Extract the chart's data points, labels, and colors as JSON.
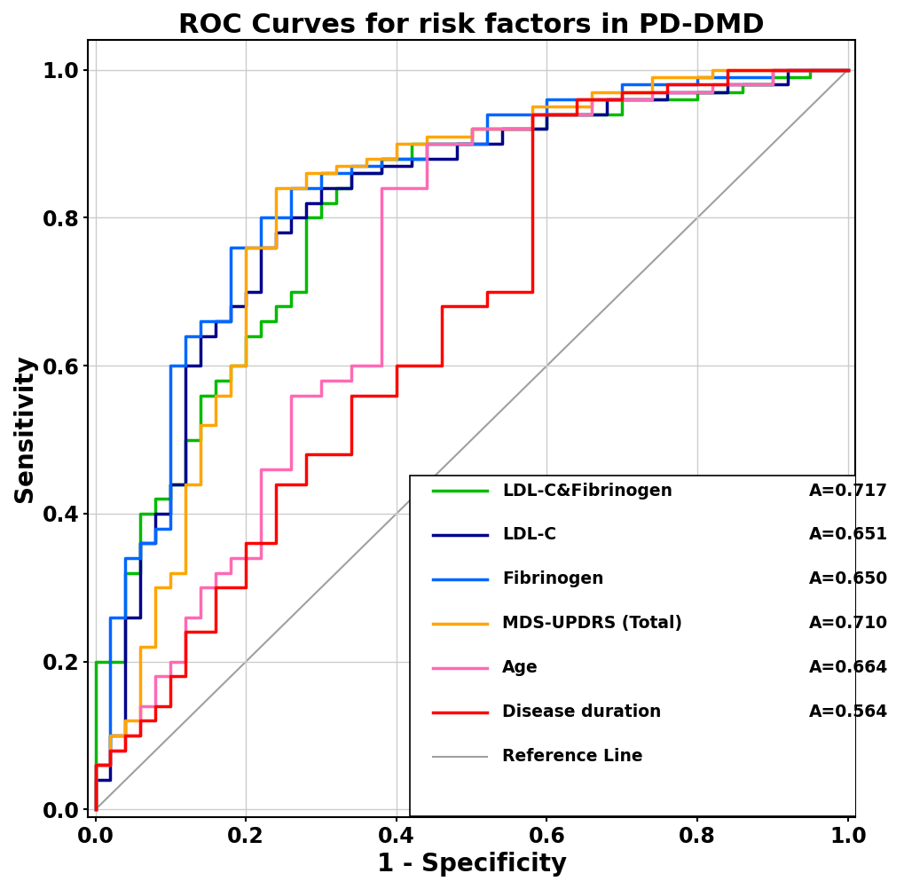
{
  "title": "ROC Curves for risk factors in PD-DMD",
  "xlabel": "1 - Specificity",
  "ylabel": "Sensitivity",
  "title_fontsize": 22,
  "axis_label_fontsize": 20,
  "tick_fontsize": 17,
  "legend_fontsize": 13.5,
  "curves": [
    {
      "label": "LDL-C&Fibrinogen",
      "auc": "A=0.717",
      "color": "#00BB00",
      "lw": 2.5,
      "fpr": [
        0.0,
        0.0,
        0.04,
        0.04,
        0.06,
        0.06,
        0.08,
        0.08,
        0.1,
        0.1,
        0.12,
        0.12,
        0.14,
        0.14,
        0.16,
        0.16,
        0.18,
        0.18,
        0.2,
        0.2,
        0.22,
        0.22,
        0.24,
        0.24,
        0.26,
        0.26,
        0.28,
        0.28,
        0.3,
        0.3,
        0.32,
        0.32,
        0.34,
        0.34,
        0.38,
        0.38,
        0.42,
        0.42,
        0.5,
        0.5,
        0.6,
        0.6,
        0.7,
        0.7,
        0.8,
        0.8,
        0.86,
        0.86,
        0.9,
        0.9,
        0.95,
        0.95,
        1.0
      ],
      "tpr": [
        0.0,
        0.2,
        0.2,
        0.32,
        0.32,
        0.4,
        0.4,
        0.42,
        0.42,
        0.44,
        0.44,
        0.5,
        0.5,
        0.56,
        0.56,
        0.58,
        0.58,
        0.6,
        0.6,
        0.64,
        0.64,
        0.66,
        0.66,
        0.68,
        0.68,
        0.7,
        0.7,
        0.8,
        0.8,
        0.82,
        0.82,
        0.84,
        0.84,
        0.86,
        0.86,
        0.88,
        0.88,
        0.9,
        0.9,
        0.92,
        0.92,
        0.94,
        0.94,
        0.96,
        0.96,
        0.97,
        0.97,
        0.98,
        0.98,
        0.99,
        0.99,
        1.0,
        1.0
      ]
    },
    {
      "label": "LDL-C",
      "auc": "A=0.651",
      "color": "#00008B",
      "lw": 2.5,
      "fpr": [
        0.0,
        0.0,
        0.02,
        0.02,
        0.04,
        0.04,
        0.06,
        0.06,
        0.08,
        0.08,
        0.1,
        0.1,
        0.12,
        0.12,
        0.14,
        0.14,
        0.16,
        0.16,
        0.18,
        0.18,
        0.2,
        0.2,
        0.22,
        0.22,
        0.24,
        0.24,
        0.26,
        0.26,
        0.28,
        0.28,
        0.3,
        0.3,
        0.34,
        0.34,
        0.38,
        0.38,
        0.42,
        0.42,
        0.48,
        0.48,
        0.54,
        0.54,
        0.6,
        0.6,
        0.68,
        0.68,
        0.76,
        0.76,
        0.84,
        0.84,
        0.92,
        0.92,
        1.0
      ],
      "tpr": [
        0.0,
        0.04,
        0.04,
        0.1,
        0.1,
        0.26,
        0.26,
        0.36,
        0.36,
        0.4,
        0.4,
        0.44,
        0.44,
        0.6,
        0.6,
        0.64,
        0.64,
        0.66,
        0.66,
        0.68,
        0.68,
        0.7,
        0.7,
        0.76,
        0.76,
        0.78,
        0.78,
        0.8,
        0.8,
        0.82,
        0.82,
        0.84,
        0.84,
        0.86,
        0.86,
        0.87,
        0.87,
        0.88,
        0.88,
        0.9,
        0.9,
        0.92,
        0.92,
        0.94,
        0.94,
        0.96,
        0.96,
        0.97,
        0.97,
        0.98,
        0.98,
        1.0,
        1.0
      ]
    },
    {
      "label": "Fibrinogen",
      "auc": "A=0.650",
      "color": "#0066FF",
      "lw": 2.5,
      "fpr": [
        0.0,
        0.0,
        0.02,
        0.02,
        0.04,
        0.04,
        0.06,
        0.06,
        0.08,
        0.08,
        0.1,
        0.1,
        0.12,
        0.12,
        0.14,
        0.14,
        0.18,
        0.18,
        0.22,
        0.22,
        0.26,
        0.26,
        0.3,
        0.3,
        0.34,
        0.34,
        0.38,
        0.38,
        0.44,
        0.44,
        0.52,
        0.52,
        0.6,
        0.6,
        0.7,
        0.7,
        0.8,
        0.8,
        0.9,
        0.9,
        1.0
      ],
      "tpr": [
        0.0,
        0.06,
        0.06,
        0.26,
        0.26,
        0.34,
        0.34,
        0.36,
        0.36,
        0.38,
        0.38,
        0.6,
        0.6,
        0.64,
        0.64,
        0.66,
        0.66,
        0.76,
        0.76,
        0.8,
        0.8,
        0.84,
        0.84,
        0.86,
        0.86,
        0.87,
        0.87,
        0.88,
        0.88,
        0.9,
        0.9,
        0.94,
        0.94,
        0.96,
        0.96,
        0.98,
        0.98,
        0.99,
        0.99,
        1.0,
        1.0
      ]
    },
    {
      "label": "MDS-UPDRS (Total)",
      "auc": "A=0.710",
      "color": "#FFA500",
      "lw": 2.5,
      "fpr": [
        0.0,
        0.0,
        0.02,
        0.02,
        0.04,
        0.04,
        0.06,
        0.06,
        0.08,
        0.08,
        0.1,
        0.1,
        0.12,
        0.12,
        0.14,
        0.14,
        0.16,
        0.16,
        0.18,
        0.18,
        0.2,
        0.2,
        0.24,
        0.24,
        0.28,
        0.28,
        0.32,
        0.32,
        0.36,
        0.36,
        0.4,
        0.4,
        0.44,
        0.44,
        0.5,
        0.5,
        0.58,
        0.58,
        0.66,
        0.66,
        0.74,
        0.74,
        0.82,
        0.82,
        0.9,
        0.9,
        1.0
      ],
      "tpr": [
        0.0,
        0.06,
        0.06,
        0.1,
        0.1,
        0.12,
        0.12,
        0.22,
        0.22,
        0.3,
        0.3,
        0.32,
        0.32,
        0.44,
        0.44,
        0.52,
        0.52,
        0.56,
        0.56,
        0.6,
        0.6,
        0.76,
        0.76,
        0.84,
        0.84,
        0.86,
        0.86,
        0.87,
        0.87,
        0.88,
        0.88,
        0.9,
        0.9,
        0.91,
        0.91,
        0.92,
        0.92,
        0.95,
        0.95,
        0.97,
        0.97,
        0.99,
        0.99,
        1.0,
        1.0,
        1.0,
        1.0
      ]
    },
    {
      "label": "Age",
      "auc": "A=0.664",
      "color": "#FF69B4",
      "lw": 2.5,
      "fpr": [
        0.0,
        0.0,
        0.02,
        0.02,
        0.04,
        0.04,
        0.06,
        0.06,
        0.08,
        0.08,
        0.1,
        0.1,
        0.12,
        0.12,
        0.14,
        0.14,
        0.16,
        0.16,
        0.18,
        0.18,
        0.22,
        0.22,
        0.26,
        0.26,
        0.3,
        0.3,
        0.34,
        0.34,
        0.38,
        0.38,
        0.44,
        0.44,
        0.5,
        0.5,
        0.58,
        0.58,
        0.66,
        0.66,
        0.74,
        0.74,
        0.82,
        0.82,
        0.9,
        0.9,
        1.0
      ],
      "tpr": [
        0.0,
        0.06,
        0.06,
        0.08,
        0.08,
        0.1,
        0.1,
        0.14,
        0.14,
        0.18,
        0.18,
        0.2,
        0.2,
        0.26,
        0.26,
        0.3,
        0.3,
        0.32,
        0.32,
        0.34,
        0.34,
        0.46,
        0.46,
        0.56,
        0.56,
        0.58,
        0.58,
        0.6,
        0.6,
        0.84,
        0.84,
        0.9,
        0.9,
        0.92,
        0.92,
        0.94,
        0.94,
        0.96,
        0.96,
        0.97,
        0.97,
        0.98,
        0.98,
        1.0,
        1.0
      ]
    },
    {
      "label": "Disease duration",
      "auc": "A=0.564",
      "color": "#FF0000",
      "lw": 2.5,
      "fpr": [
        0.0,
        0.0,
        0.02,
        0.02,
        0.04,
        0.04,
        0.06,
        0.06,
        0.08,
        0.08,
        0.1,
        0.1,
        0.12,
        0.12,
        0.16,
        0.16,
        0.2,
        0.2,
        0.24,
        0.24,
        0.28,
        0.28,
        0.34,
        0.34,
        0.4,
        0.4,
        0.46,
        0.46,
        0.52,
        0.52,
        0.58,
        0.58,
        0.64,
        0.64,
        0.7,
        0.7,
        0.76,
        0.76,
        0.84,
        0.84,
        0.92,
        0.92,
        1.0
      ],
      "tpr": [
        0.0,
        0.06,
        0.06,
        0.08,
        0.08,
        0.1,
        0.1,
        0.12,
        0.12,
        0.14,
        0.14,
        0.18,
        0.18,
        0.24,
        0.24,
        0.3,
        0.3,
        0.36,
        0.36,
        0.44,
        0.44,
        0.48,
        0.48,
        0.56,
        0.56,
        0.6,
        0.6,
        0.68,
        0.68,
        0.7,
        0.7,
        0.94,
        0.94,
        0.96,
        0.96,
        0.97,
        0.97,
        0.98,
        0.98,
        1.0,
        1.0,
        1.0,
        1.0
      ]
    }
  ],
  "reference_line_color": "#A0A0A0",
  "background_color": "#FFFFFF",
  "grid_color": "#CCCCCC",
  "xlim": [
    -0.01,
    1.01
  ],
  "ylim": [
    -0.01,
    1.04
  ],
  "xticks": [
    0.0,
    0.2,
    0.4,
    0.6,
    0.8,
    1.0
  ],
  "yticks": [
    0.0,
    0.2,
    0.4,
    0.6,
    0.8,
    1.0
  ],
  "legend_labels": [
    "LDL-C&Fibrinogen",
    "LDL-C",
    "Fibrinogen",
    "MDS-UPDRS (Total)",
    "Age",
    "Disease duration",
    "Reference Line"
  ],
  "legend_aucs": [
    "A=0.717",
    "A=0.651",
    "A=0.650",
    "A=0.710",
    "A=0.664",
    "A=0.564",
    ""
  ]
}
